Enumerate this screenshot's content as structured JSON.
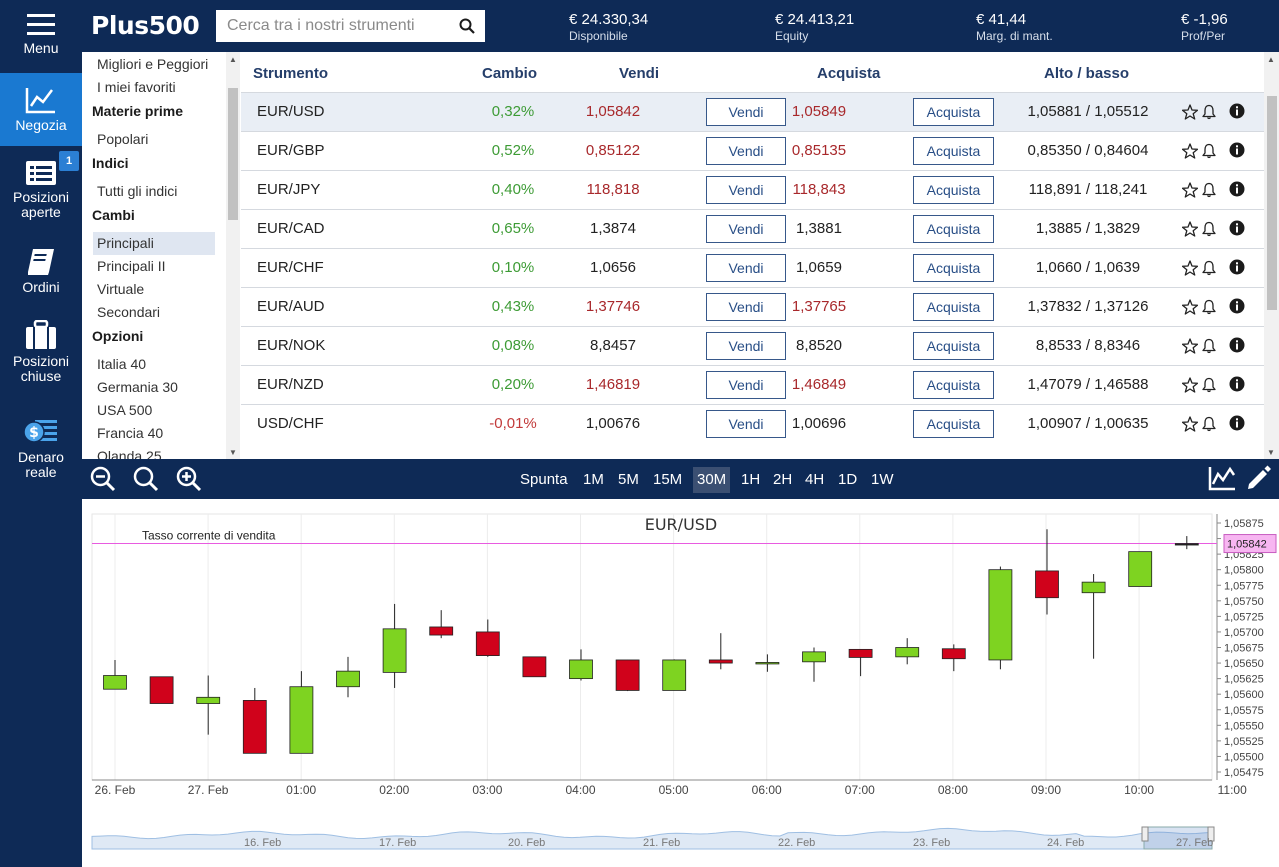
{
  "nav": {
    "items": [
      {
        "label": "Menu",
        "icon": "hamburger-icon"
      },
      {
        "label": "Negozia",
        "icon": "chart-line-icon",
        "active": true
      },
      {
        "label_1": "Posizioni",
        "label_2": "aperte",
        "icon": "list-icon",
        "badge": "1"
      },
      {
        "label": "Ordini",
        "icon": "notebook-icon"
      },
      {
        "label_1": "Posizioni",
        "label_2": "chiuse",
        "icon": "briefcase-icon"
      },
      {
        "label_1": "Denaro",
        "label_2": "reale",
        "icon": "money-icon"
      }
    ]
  },
  "header": {
    "logo": "Plus500",
    "search_placeholder": "Cerca tra i nostri strumenti",
    "stats": [
      {
        "value": "€ 24.330,34",
        "label": "Disponibile"
      },
      {
        "value": "€ 24.413,21",
        "label": "Equity"
      },
      {
        "value": "€ 41,44",
        "label": "Marg. di mant."
      },
      {
        "value": "€ -1,96",
        "label": "Prof/Per"
      }
    ]
  },
  "categories": {
    "items": [
      {
        "type": "item",
        "label": "Migliori e Peggiori"
      },
      {
        "type": "item",
        "label": "I miei favoriti"
      },
      {
        "type": "head",
        "label": "Materie prime"
      },
      {
        "type": "item",
        "label": "Popolari"
      },
      {
        "type": "head",
        "label": "Indici"
      },
      {
        "type": "item",
        "label": "Tutti gli indici"
      },
      {
        "type": "head",
        "label": "Cambi"
      },
      {
        "type": "item",
        "label": "Principali",
        "selected": true
      },
      {
        "type": "item",
        "label": "Principali II"
      },
      {
        "type": "item",
        "label": "Virtuale"
      },
      {
        "type": "item",
        "label": "Secondari"
      },
      {
        "type": "head",
        "label": "Opzioni"
      },
      {
        "type": "item",
        "label": "Italia 40"
      },
      {
        "type": "item",
        "label": "Germania 30"
      },
      {
        "type": "item",
        "label": "USA 500"
      },
      {
        "type": "item",
        "label": "Francia 40"
      },
      {
        "type": "item",
        "label": "Olanda 25"
      }
    ]
  },
  "table": {
    "headers": {
      "instrument": "Strumento",
      "change": "Cambio",
      "sell": "Vendi",
      "buy": "Acquista",
      "highlow": "Alto / basso"
    },
    "sell_button": "Vendi",
    "buy_button": "Acquista",
    "rows": [
      {
        "name": "EUR/USD",
        "change": "0,32%",
        "dir": "pos",
        "sell": "1,05842",
        "buy": "1,05849",
        "price_color": "red",
        "highlow": "1,05881 / 1,05512",
        "selected": true
      },
      {
        "name": "EUR/GBP",
        "change": "0,52%",
        "dir": "pos",
        "sell": "0,85122",
        "buy": "0,85135",
        "price_color": "red",
        "highlow": "0,85350 / 0,84604"
      },
      {
        "name": "EUR/JPY",
        "change": "0,40%",
        "dir": "pos",
        "sell": "118,818",
        "buy": "118,843",
        "price_color": "red",
        "highlow": "118,891 / 118,241"
      },
      {
        "name": "EUR/CAD",
        "change": "0,65%",
        "dir": "pos",
        "sell": "1,3874",
        "buy": "1,3881",
        "price_color": "flat",
        "highlow": "1,3885 / 1,3829"
      },
      {
        "name": "EUR/CHF",
        "change": "0,10%",
        "dir": "pos",
        "sell": "1,0656",
        "buy": "1,0659",
        "price_color": "flat",
        "highlow": "1,0660 / 1,0639"
      },
      {
        "name": "EUR/AUD",
        "change": "0,43%",
        "dir": "pos",
        "sell": "1,37746",
        "buy": "1,37765",
        "price_color": "red",
        "highlow": "1,37832 / 1,37126"
      },
      {
        "name": "EUR/NOK",
        "change": "0,08%",
        "dir": "pos",
        "sell": "8,8457",
        "buy": "8,8520",
        "price_color": "flat",
        "highlow": "8,8533 / 8,8346"
      },
      {
        "name": "EUR/NZD",
        "change": "0,20%",
        "dir": "pos",
        "sell": "1,46819",
        "buy": "1,46849",
        "price_color": "red",
        "highlow": "1,47079 / 1,46588"
      },
      {
        "name": "USD/CHF",
        "change": "-0,01%",
        "dir": "neg",
        "sell": "1,00676",
        "buy": "1,00696",
        "price_color": "flat",
        "highlow": "1,00907 / 1,00635"
      }
    ]
  },
  "chart_toolbar": {
    "timeframes": [
      "Spunta",
      "1M",
      "5M",
      "15M",
      "30M",
      "1H",
      "2H",
      "4H",
      "1D",
      "1W"
    ],
    "selected": "30M"
  },
  "chart_data": {
    "type": "candlestick",
    "title": "EUR/USD",
    "current_rate_label": "Tasso corrente di vendita",
    "current_rate": 1.05842,
    "current_rate_text": "1,05842",
    "ylim": [
      1.05475,
      1.05875
    ],
    "y_ticks": [
      "1,05875",
      "1,05850",
      "1,05825",
      "1,05800",
      "1,05775",
      "1,05750",
      "1,05725",
      "1,05700",
      "1,05675",
      "1,05650",
      "1,05625",
      "1,05600",
      "1,05575",
      "1,05550",
      "1,05525",
      "1,05500",
      "1,05475"
    ],
    "x_ticks": [
      "26. Feb",
      "27. Feb",
      "01:00",
      "02:00",
      "03:00",
      "04:00",
      "05:00",
      "06:00",
      "07:00",
      "08:00",
      "09:00",
      "10:00",
      "11:00"
    ],
    "candles": [
      {
        "o": 1.05608,
        "h": 1.05655,
        "l": 1.05608,
        "c": 1.0563
      },
      {
        "o": 1.05628,
        "h": 1.05628,
        "l": 1.05585,
        "c": 1.05585
      },
      {
        "o": 1.05585,
        "h": 1.0563,
        "l": 1.05535,
        "c": 1.05595
      },
      {
        "o": 1.0559,
        "h": 1.0561,
        "l": 1.05505,
        "c": 1.05505
      },
      {
        "o": 1.05505,
        "h": 1.05637,
        "l": 1.05505,
        "c": 1.05612
      },
      {
        "o": 1.05612,
        "h": 1.0566,
        "l": 1.05595,
        "c": 1.05637
      },
      {
        "o": 1.05635,
        "h": 1.05745,
        "l": 1.0561,
        "c": 1.05705
      },
      {
        "o": 1.05708,
        "h": 1.05735,
        "l": 1.0569,
        "c": 1.05695
      },
      {
        "o": 1.057,
        "h": 1.0572,
        "l": 1.0566,
        "c": 1.05662
      },
      {
        "o": 1.0566,
        "h": 1.0566,
        "l": 1.05628,
        "c": 1.05628
      },
      {
        "o": 1.05625,
        "h": 1.05672,
        "l": 1.05622,
        "c": 1.05655
      },
      {
        "o": 1.05655,
        "h": 1.05655,
        "l": 1.05605,
        "c": 1.05606
      },
      {
        "o": 1.05606,
        "h": 1.05656,
        "l": 1.05606,
        "c": 1.05655
      },
      {
        "o": 1.05655,
        "h": 1.05698,
        "l": 1.0564,
        "c": 1.0565
      },
      {
        "o": 1.05651,
        "h": 1.05664,
        "l": 1.05636,
        "c": 1.05651
      },
      {
        "o": 1.05652,
        "h": 1.05675,
        "l": 1.0562,
        "c": 1.05668
      },
      {
        "o": 1.05672,
        "h": 1.05672,
        "l": 1.05629,
        "c": 1.05659
      },
      {
        "o": 1.0566,
        "h": 1.0569,
        "l": 1.05648,
        "c": 1.05675
      },
      {
        "o": 1.05673,
        "h": 1.0568,
        "l": 1.05637,
        "c": 1.05657
      },
      {
        "o": 1.05655,
        "h": 1.05805,
        "l": 1.0564,
        "c": 1.058
      },
      {
        "o": 1.05798,
        "h": 1.05865,
        "l": 1.05728,
        "c": 1.05755
      },
      {
        "o": 1.05763,
        "h": 1.05793,
        "l": 1.05657,
        "c": 1.0578
      },
      {
        "o": 1.05773,
        "h": 1.05829,
        "l": 1.05773,
        "c": 1.05829
      },
      {
        "o": 1.05842,
        "h": 1.05854,
        "l": 1.05833,
        "c": 1.05842
      }
    ],
    "navigator_ticks": [
      "16. Feb",
      "17. Feb",
      "20. Feb",
      "21. Feb",
      "22. Feb",
      "23. Feb",
      "24. Feb",
      "27. Feb"
    ]
  },
  "colors": {
    "nav_bg": "#0e2a56",
    "active": "#1a79d1",
    "up_candle": "#7ed321",
    "down_candle": "#d0021b",
    "rate_line": "#e85be0"
  }
}
